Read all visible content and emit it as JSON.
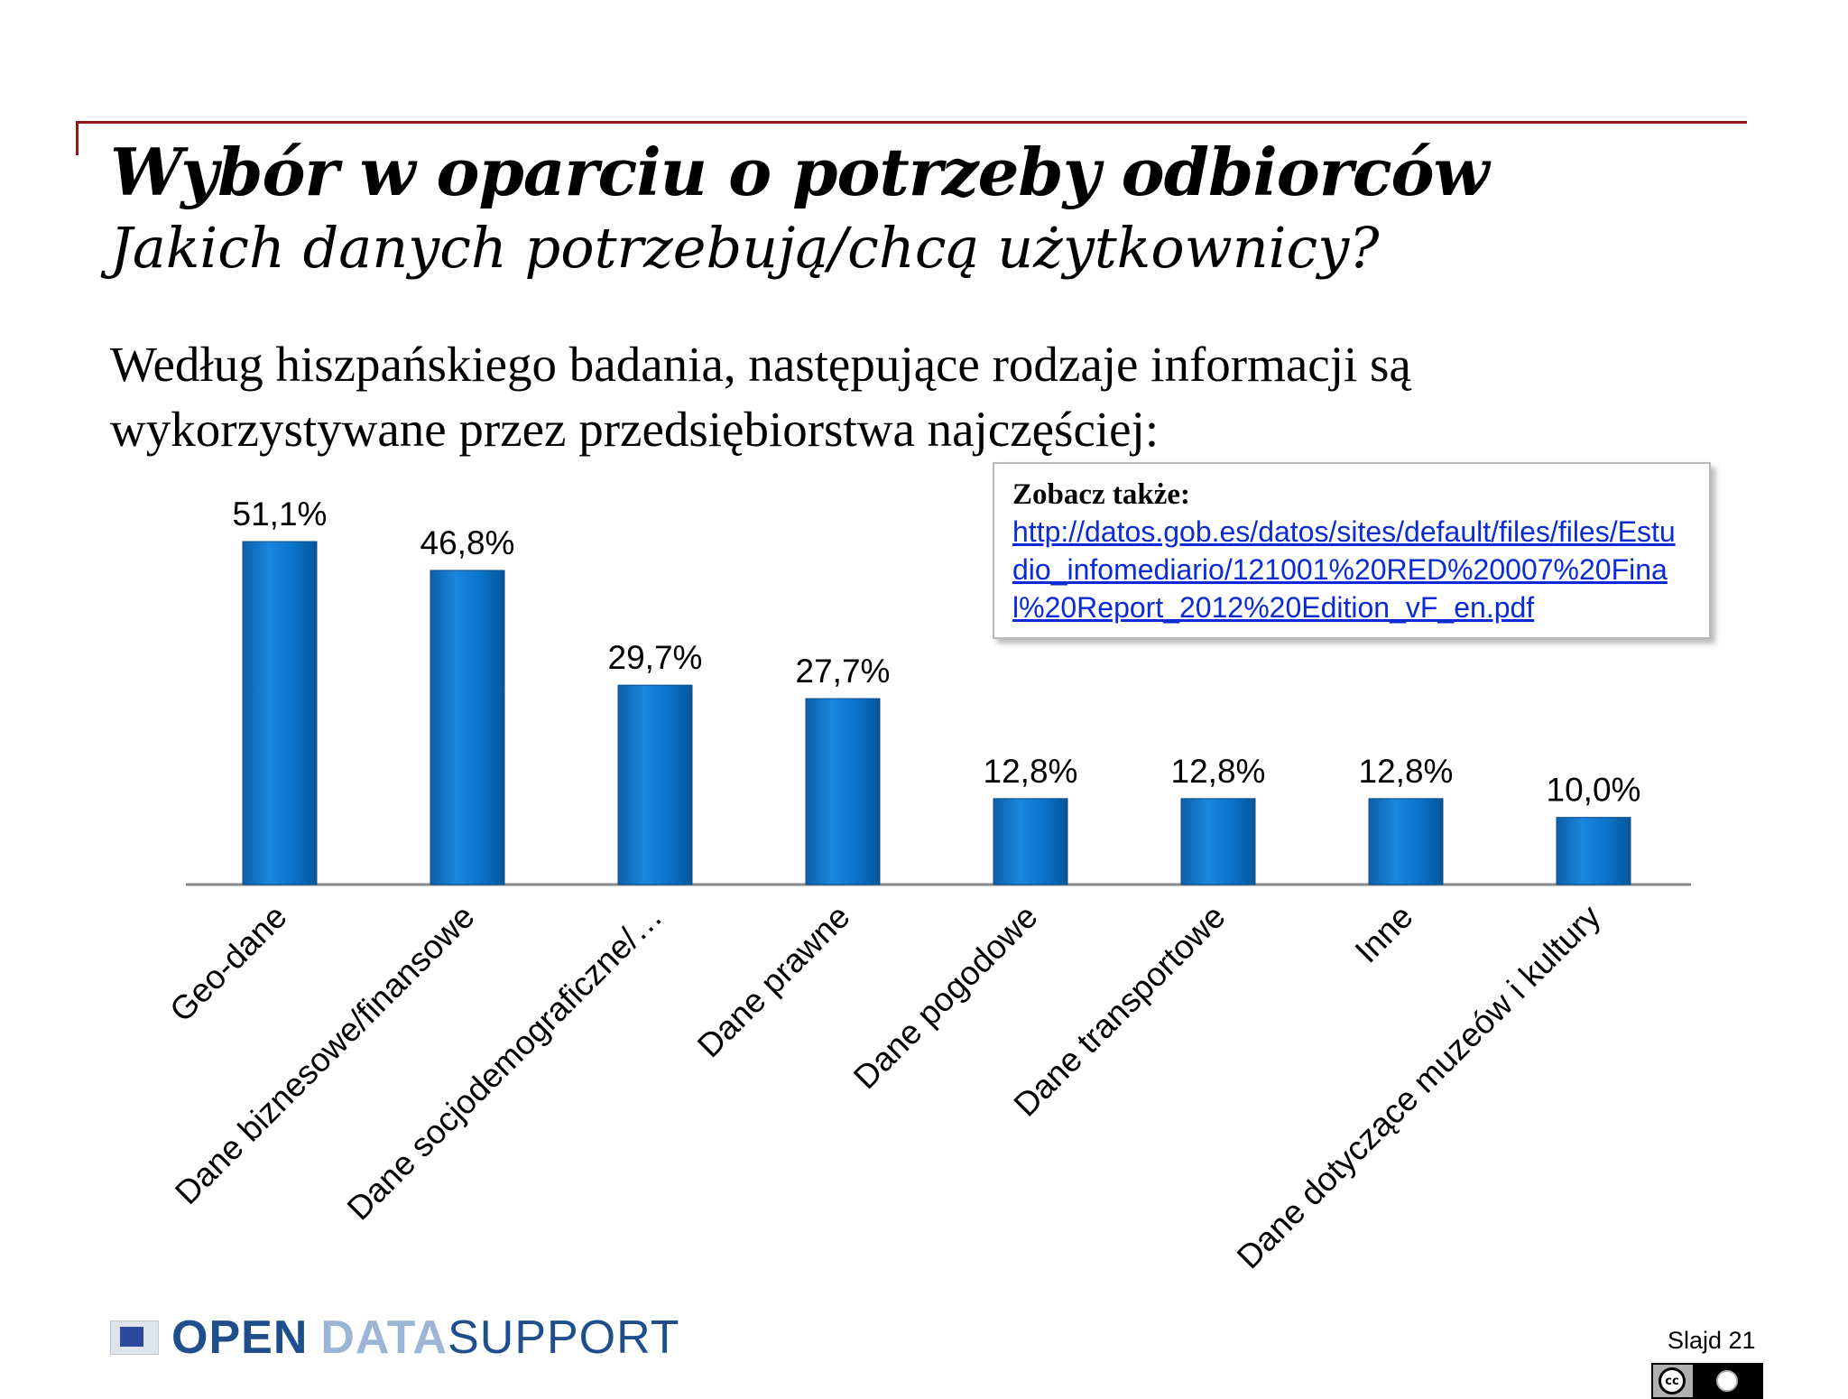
{
  "slide": {
    "title": "Wybór w oparciu o potrzeby odbiorców",
    "subtitle": "Jakich danych potrzebują/chcą użytkownicy?",
    "body": "Według hiszpańskiego badania, następujące rodzaje informacji są wykorzystywane przez przedsiębiorstwa najczęściej:",
    "slide_number": "Slajd 21"
  },
  "note": {
    "title": "Zobacz także:",
    "link": "http://datos.gob.es/datos/sites/default/files/files/Estudio_infomediario/121001%20RED%20007%20Final%20Report_2012%20Edition_vF_en.pdf"
  },
  "logo": {
    "open": "OPEN",
    "data": "DATA",
    "support": "SUPPORT"
  },
  "chart_data": {
    "type": "bar",
    "categories": [
      "Geo-dane",
      "Dane biznesowe/finansowe",
      "Dane socjodemograficzne/…",
      "Dane prawne",
      "Dane pogodowe",
      "Dane transportowe",
      "Inne",
      "Dane dotyczące muzeów i kultury"
    ],
    "values": [
      51.1,
      46.8,
      29.7,
      27.7,
      12.8,
      12.8,
      12.8,
      10.0
    ],
    "data_labels": [
      "51,1%",
      "46,8%",
      "29,7%",
      "27,7%",
      "12,8%",
      "12,8%",
      "12,8%",
      "10,0%"
    ],
    "ylim": [
      0,
      51.1
    ],
    "grid": false,
    "legend": "none",
    "bar_color": "#0a72c8"
  }
}
